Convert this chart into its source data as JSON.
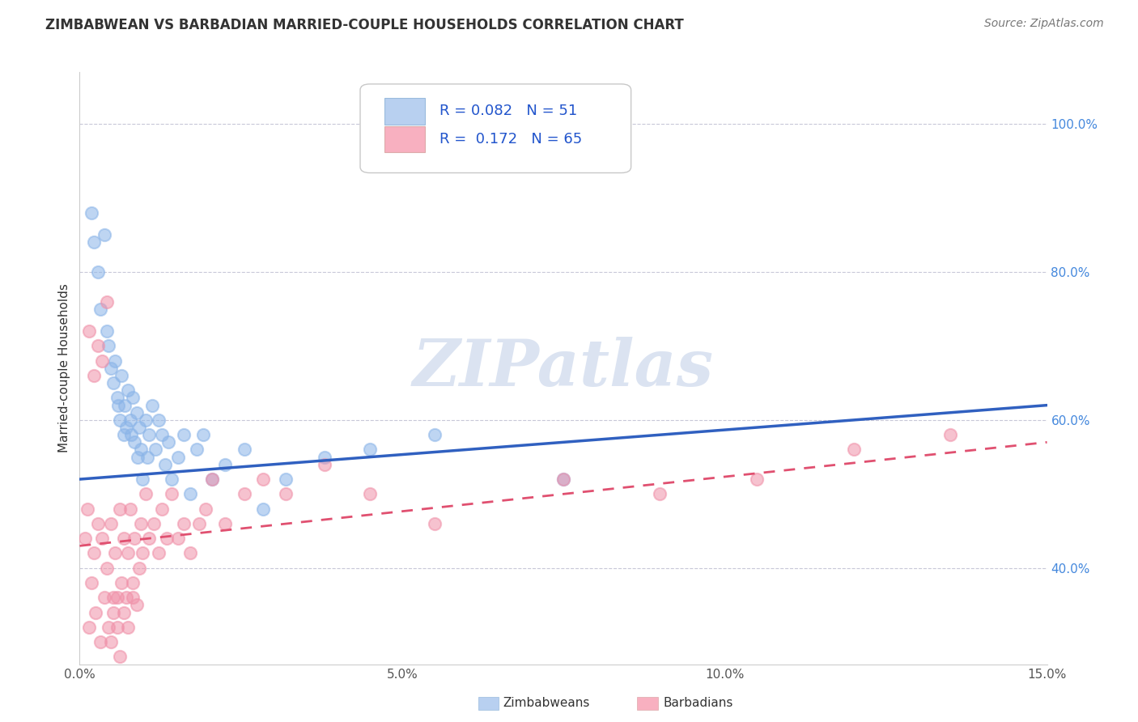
{
  "title": "ZIMBABWEAN VS BARBADIAN MARRIED-COUPLE HOUSEHOLDS CORRELATION CHART",
  "source": "Source: ZipAtlas.com",
  "ylabel": "Married-couple Households",
  "xlim": [
    0.0,
    15.0
  ],
  "ylim": [
    27.0,
    107.0
  ],
  "xticks": [
    0.0,
    5.0,
    10.0,
    15.0
  ],
  "yticks": [
    40.0,
    60.0,
    80.0,
    100.0
  ],
  "series1_label": "Zimbabweans",
  "series2_label": "Barbadians",
  "series1_color": "#8ab4e8",
  "series2_color": "#f090a8",
  "series1_line_color": "#3060c0",
  "series2_line_color": "#e05070",
  "series1_legend_color": "#b8d0f0",
  "series2_legend_color": "#f8b0c0",
  "legend_text_color": "#2255cc",
  "watermark_color": "#ccd8ec",
  "background_color": "#ffffff",
  "grid_color": "#c8c8d8",
  "tick_color": "#4488dd",
  "title_color": "#333333",
  "source_color": "#777777",
  "ylabel_color": "#333333",
  "zimbabwean_x": [
    0.18,
    0.22,
    0.28,
    0.32,
    0.38,
    0.42,
    0.45,
    0.48,
    0.52,
    0.55,
    0.58,
    0.6,
    0.62,
    0.65,
    0.68,
    0.7,
    0.72,
    0.75,
    0.78,
    0.8,
    0.82,
    0.85,
    0.88,
    0.9,
    0.92,
    0.95,
    0.98,
    1.02,
    1.05,
    1.08,
    1.12,
    1.18,
    1.22,
    1.28,
    1.32,
    1.38,
    1.42,
    1.52,
    1.62,
    1.72,
    1.82,
    1.92,
    2.05,
    2.25,
    2.55,
    2.85,
    3.2,
    3.8,
    4.5,
    5.5,
    7.5
  ],
  "zimbabwean_y": [
    88,
    84,
    80,
    75,
    85,
    72,
    70,
    67,
    65,
    68,
    63,
    62,
    60,
    66,
    58,
    62,
    59,
    64,
    60,
    58,
    63,
    57,
    61,
    55,
    59,
    56,
    52,
    60,
    55,
    58,
    62,
    56,
    60,
    58,
    54,
    57,
    52,
    55,
    58,
    50,
    56,
    58,
    52,
    54,
    56,
    48,
    52,
    55,
    56,
    58,
    52
  ],
  "barbadian_x": [
    0.08,
    0.12,
    0.15,
    0.18,
    0.22,
    0.25,
    0.28,
    0.32,
    0.35,
    0.38,
    0.42,
    0.45,
    0.48,
    0.52,
    0.55,
    0.58,
    0.62,
    0.65,
    0.68,
    0.72,
    0.75,
    0.78,
    0.82,
    0.85,
    0.88,
    0.92,
    0.95,
    0.98,
    1.02,
    1.08,
    1.15,
    1.22,
    1.28,
    1.35,
    1.42,
    1.52,
    1.62,
    1.72,
    1.85,
    1.95,
    2.05,
    2.25,
    2.55,
    2.85,
    3.2,
    3.8,
    4.5,
    5.5,
    7.5,
    9.0,
    10.5,
    12.0,
    13.5,
    0.15,
    0.22,
    0.28,
    0.35,
    0.42,
    0.48,
    0.52,
    0.58,
    0.62,
    0.68,
    0.75,
    0.82
  ],
  "barbadian_y": [
    44,
    48,
    32,
    38,
    42,
    34,
    46,
    30,
    44,
    36,
    40,
    32,
    46,
    34,
    42,
    36,
    48,
    38,
    44,
    36,
    42,
    48,
    38,
    44,
    35,
    40,
    46,
    42,
    50,
    44,
    46,
    42,
    48,
    44,
    50,
    44,
    46,
    42,
    46,
    48,
    52,
    46,
    50,
    52,
    50,
    54,
    50,
    46,
    52,
    50,
    52,
    56,
    58,
    72,
    66,
    70,
    68,
    76,
    30,
    36,
    32,
    28,
    34,
    32,
    36
  ]
}
